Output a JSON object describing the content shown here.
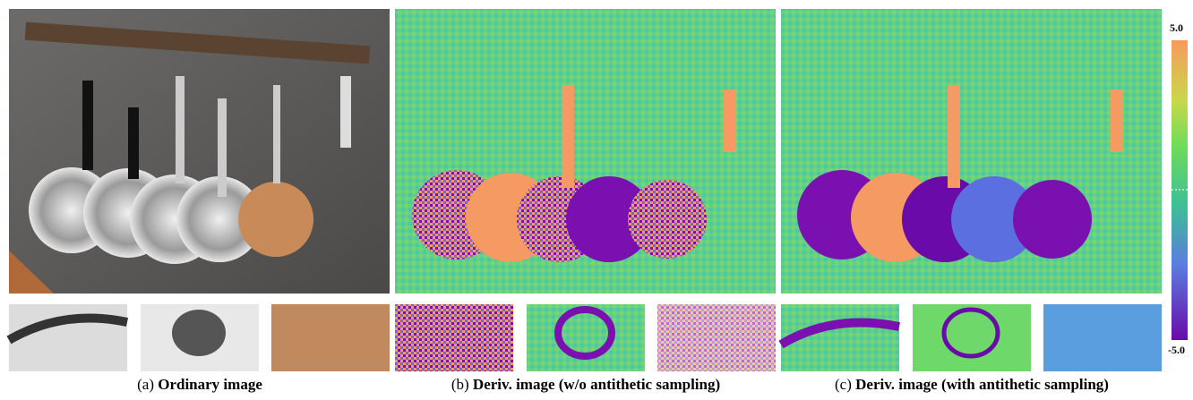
{
  "panels": [
    {
      "label": "(a)",
      "caption": "Ordinary image"
    },
    {
      "label": "(b)",
      "caption": "Deriv. image (w/o antithetic sampling)"
    },
    {
      "label": "(c)",
      "caption": "Deriv. image (with antithetic sampling)"
    }
  ],
  "colorbar": {
    "max": "5.0",
    "min": "-5.0"
  }
}
